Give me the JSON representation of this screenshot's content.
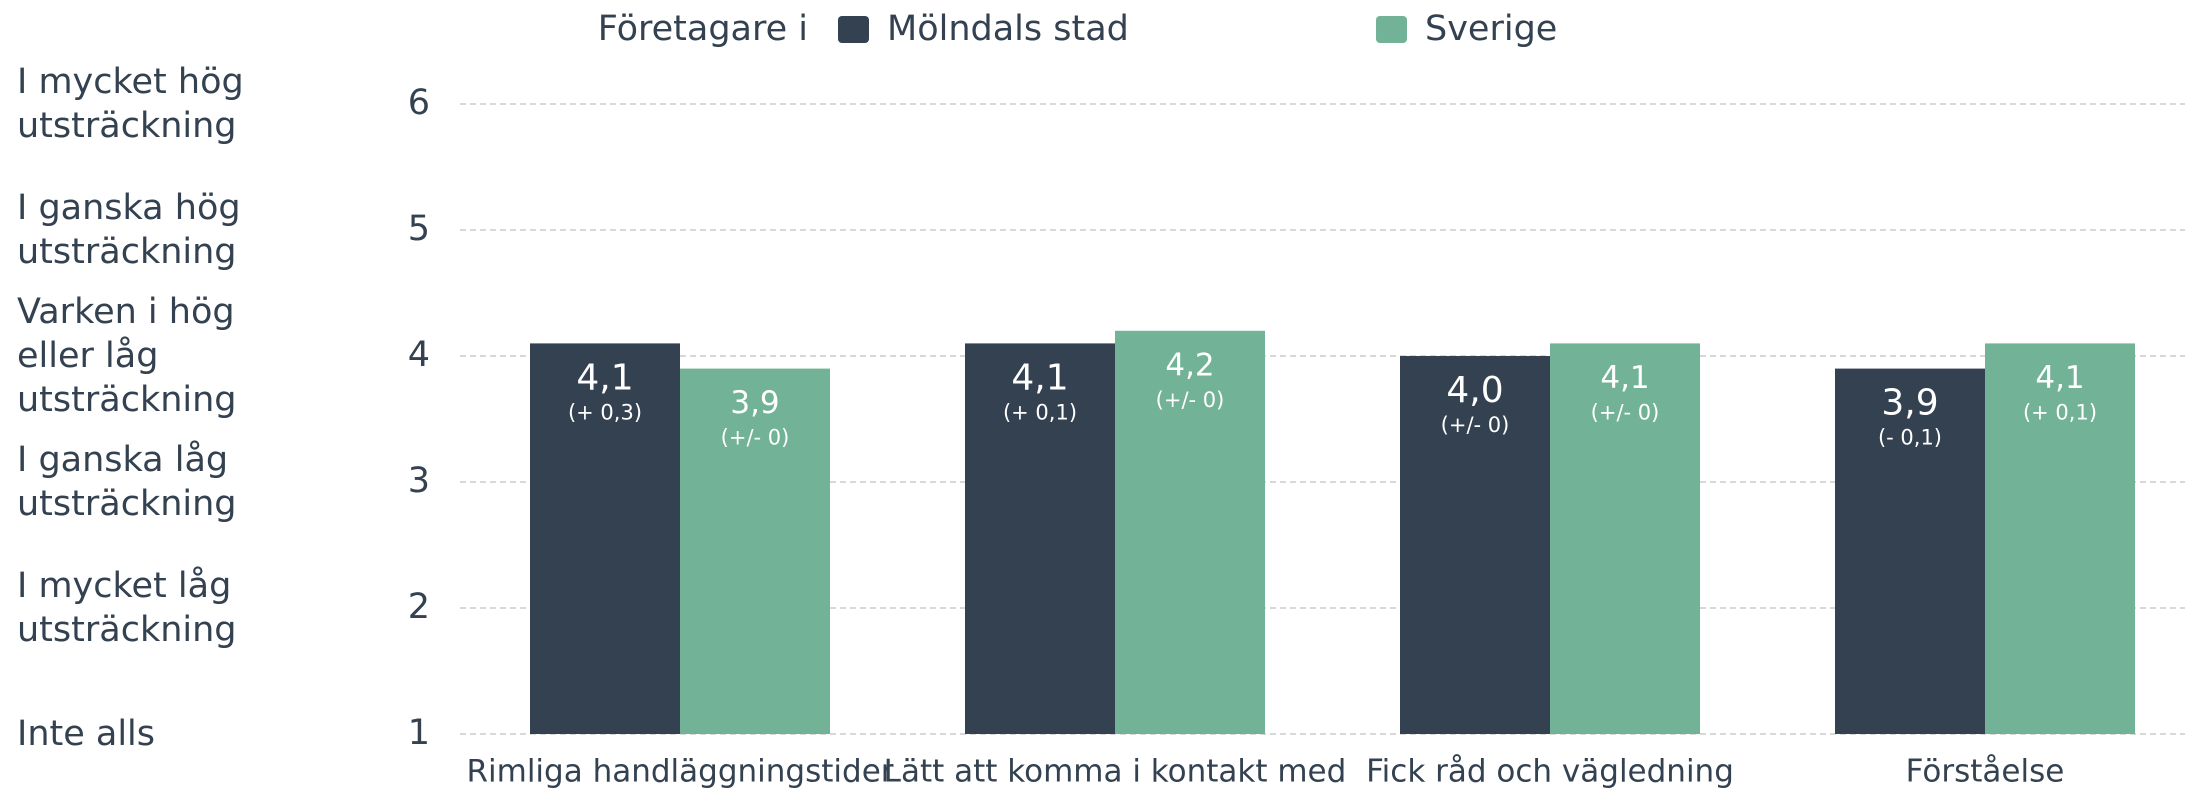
{
  "chart_data": {
    "type": "bar",
    "legend_title": "Företagare i",
    "categories": [
      "Rimliga handläggningstider",
      "Lätt att komma i kontakt med",
      "Fick råd och vägledning",
      "Förståelse"
    ],
    "series": [
      {
        "name": "Mölndals stad",
        "color": "#334150",
        "values": [
          4.1,
          4.1,
          4.0,
          3.9
        ],
        "value_labels": [
          "4,1",
          "4,1",
          "4,0",
          "3,9"
        ],
        "change_labels": [
          "(+ 0,3)",
          "(+ 0,1)",
          "(+/- 0)",
          "(- 0,1)"
        ]
      },
      {
        "name": "Sverige",
        "color": "#72b398",
        "values": [
          3.9,
          4.2,
          4.1,
          4.1
        ],
        "value_labels": [
          "3,9",
          "4,2",
          "4,1",
          "4,1"
        ],
        "change_labels": [
          "(+/- 0)",
          "(+/- 0)",
          "(+/- 0)",
          "(+ 0,1)"
        ]
      }
    ],
    "ylim": [
      1,
      6
    ],
    "yticks": [
      1,
      2,
      3,
      4,
      5,
      6
    ],
    "ytick_descriptions": [
      "Inte alls",
      "I mycket låg utsträckning",
      "I ganska låg utsträckning",
      "Varken i hög eller låg utsträckning",
      "I ganska hög utsträckning",
      "I mycket hög utsträckning"
    ],
    "grid": true
  }
}
